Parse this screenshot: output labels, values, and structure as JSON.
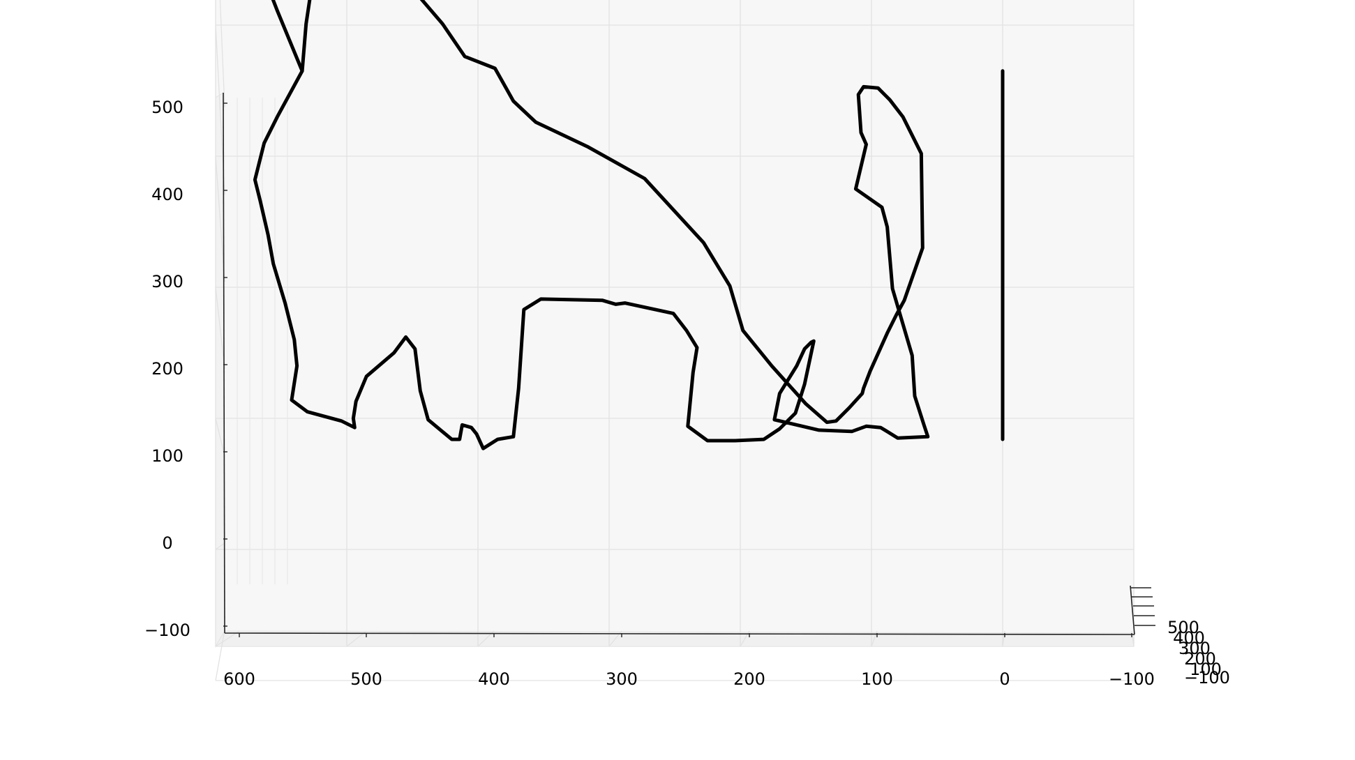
{
  "chart_data": {
    "type": "line",
    "projection": "3d",
    "title": "",
    "xlabel": "",
    "ylabel": "",
    "zlabel": "",
    "grid": true,
    "xlim": [
      -100,
      600
    ],
    "zlim": [
      -100,
      500
    ],
    "x_ticks": [
      "600",
      "500",
      "400",
      "300",
      "200",
      "100",
      "0",
      "−100"
    ],
    "z_ticks": [
      "500",
      "400",
      "300",
      "200",
      "100",
      "0",
      "−100"
    ],
    "y_ticks": [
      "500",
      "400",
      "300",
      "200",
      "100",
      "−100"
    ],
    "series": [
      {
        "color": "#000000",
        "x": [
          534,
          553,
          563,
          570,
          566,
          560,
          556,
          547,
          540,
          538,
          542,
          530,
          504,
          494,
          495,
          493,
          485,
          464,
          455,
          448,
          444,
          438,
          420,
          414,
          412,
          405,
          401,
          396,
          385,
          373,
          369,
          365,
          352,
          305,
          295,
          288,
          251,
          241,
          233,
          236,
          240,
          225,
          212,
          204,
          182,
          170,
          158,
          151,
          144,
          146,
          151,
          157,
          170,
          174,
          140,
          115,
          104,
          93,
          80,
          57,
          60,
          67,
          69,
          84,
          88,
          92,
          112,
          104,
          108,
          110,
          106,
          95,
          86,
          76,
          62,
          61,
          75,
          81,
          88,
          101,
          106,
          107,
          117,
          127,
          134,
          150,
          176,
          198,
          208,
          228,
          273,
          316,
          356,
          373,
          387,
          410,
          427,
          451,
          468,
          479,
          495,
          505,
          513,
          520,
          525,
          531,
          534
        ],
        "z": [
          365,
          330,
          310,
          282,
          266,
          240,
          218,
          188,
          160,
          140,
          114,
          105,
          98,
          93,
          100,
          113,
          132,
          150,
          162,
          153,
          121,
          99,
          84,
          84,
          95,
          93,
          88,
          77,
          84,
          86,
          123,
          183,
          191,
          190,
          187,
          188,
          180,
          167,
          154,
          135,
          94,
          83,
          83,
          83,
          84,
          92,
          104,
          126,
          159,
          158,
          153,
          140,
          119,
          99,
          91,
          90,
          94,
          93,
          85,
          86,
          95,
          117,
          148,
          199,
          246,
          261,
          275,
          309,
          318,
          347,
          353,
          352,
          343,
          330,
          302,
          230,
          190,
          179,
          165,
          136,
          123,
          119,
          108,
          98,
          97,
          111,
          140,
          167,
          201,
          234,
          283,
          307,
          326,
          342,
          367,
          376,
          401,
          429,
          451,
          464,
          474,
          476,
          472,
          462,
          441,
          401,
          365
        ]
      },
      {
        "color": "#000000",
        "x": [
          534,
          553,
          565,
          559,
          545,
          534
        ],
        "z": [
          365,
          411,
          442,
          483,
          464,
          440
        ]
      },
      {
        "color": "#000000",
        "x": [
          0,
          0
        ],
        "z": [
          365,
          84
        ]
      }
    ]
  }
}
